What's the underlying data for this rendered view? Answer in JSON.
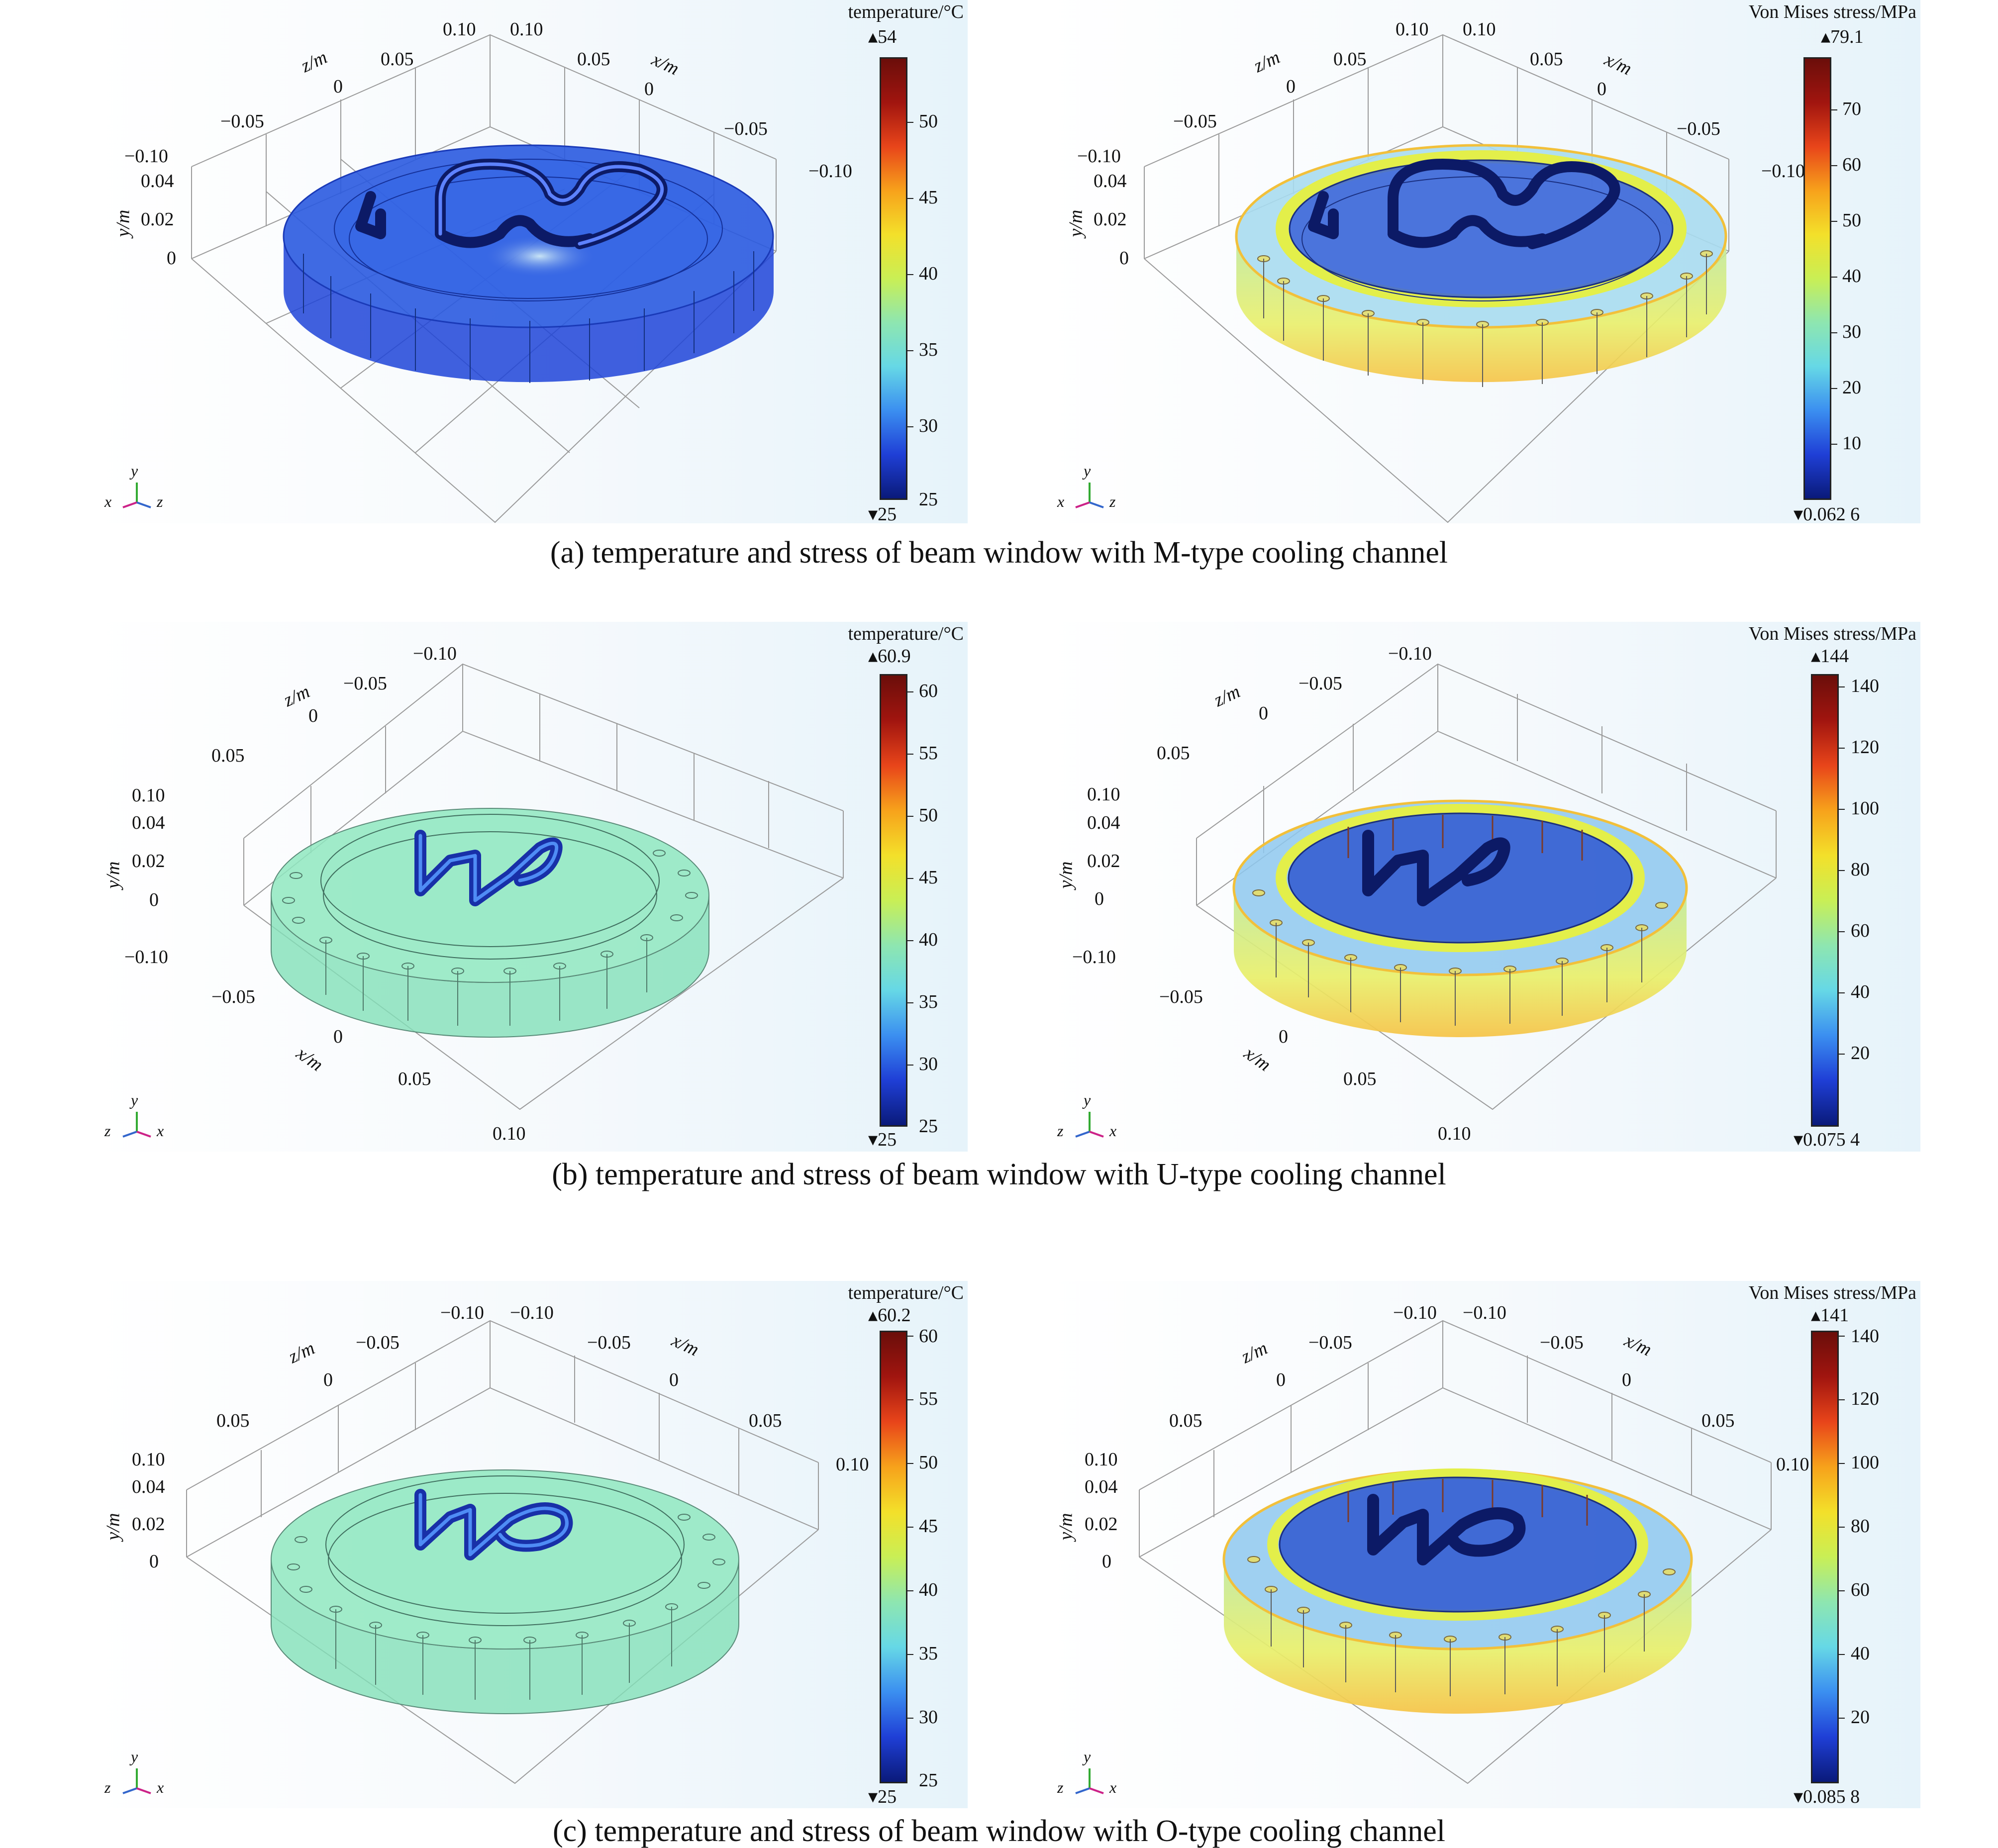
{
  "captions": {
    "a": "(a) temperature and stress of beam window with M-type cooling channel",
    "b": "(b) temperature and stress of beam window with U-type cooling channel",
    "c": "(c) temperature and stress of beam window with O-type cooling channel"
  },
  "rows": [
    {
      "temperature": {
        "colorbar": {
          "title": "temperature/°C",
          "max_label": "▴54",
          "min_label": "▾25",
          "ticks": [
            "50",
            "45",
            "40",
            "35",
            "30",
            "25"
          ],
          "range": [
            25,
            54
          ]
        },
        "axis_names": {
          "z": "z/m",
          "x": "x/m",
          "y": "y/m"
        },
        "axis_ticks": [
          "0.10",
          "0.05",
          "0",
          "−0.05",
          "−0.10",
          "0.10",
          "0.05",
          "0",
          "−0.05",
          "−0.10",
          "0.04",
          "0.02",
          "0"
        ],
        "body_color": "#2a5ae0",
        "triad": {
          "y": "y",
          "left": "x",
          "right": "z"
        }
      },
      "stress": {
        "colorbar": {
          "title": "Von Mises stress/MPa",
          "max_label": "▴79.1",
          "min_label": "▾0.062 6",
          "ticks": [
            "70",
            "60",
            "50",
            "40",
            "30",
            "20",
            "10"
          ],
          "range": [
            0.0626,
            79.1
          ]
        },
        "axis_names": {
          "z": "z/m",
          "x": "x/m",
          "y": "y/m"
        },
        "axis_ticks": [
          "0.10",
          "0.05",
          "0",
          "−0.05",
          "−0.10",
          "0.10",
          "0.05",
          "0",
          "−0.05",
          "−0.10",
          "0.04",
          "0.02",
          "0"
        ],
        "triad": {
          "y": "y",
          "left": "x",
          "right": "z"
        }
      }
    },
    {
      "temperature": {
        "colorbar": {
          "title": "temperature/°C",
          "max_label": "▴60.9",
          "min_label": "▾25",
          "ticks": [
            "60",
            "55",
            "50",
            "45",
            "40",
            "35",
            "30",
            "25"
          ],
          "range": [
            25,
            60.9
          ]
        },
        "axis_names": {
          "z": "z/m",
          "x": "x/m",
          "y": "y/m"
        },
        "axis_ticks": [
          "−0.10",
          "−0.05",
          "0",
          "0.05",
          "0.10",
          "0.04",
          "0.02",
          "0",
          "−0.10",
          "−0.05",
          "0",
          "0.05",
          "0.10"
        ],
        "body_color": "#8fe8c0",
        "triad": {
          "y": "y",
          "left": "z",
          "right": "x"
        }
      },
      "stress": {
        "colorbar": {
          "title": "Von Mises stress/MPa",
          "max_label": "▴144",
          "min_label": "▾0.075 4",
          "ticks": [
            "140",
            "120",
            "100",
            "80",
            "60",
            "40",
            "20"
          ],
          "range": [
            0.0754,
            144
          ]
        },
        "axis_names": {
          "z": "z/m",
          "x": "x/m",
          "y": "y/m"
        },
        "axis_ticks": [
          "−0.10",
          "−0.05",
          "0",
          "0.05",
          "0.10",
          "0.04",
          "0.02",
          "0",
          "−0.10",
          "−0.05",
          "0",
          "0.05",
          "0.10"
        ],
        "triad": {
          "y": "y",
          "left": "z",
          "right": "x"
        }
      }
    },
    {
      "temperature": {
        "colorbar": {
          "title": "temperature/°C",
          "max_label": "▴60.2",
          "min_label": "▾25",
          "ticks": [
            "60",
            "55",
            "50",
            "45",
            "40",
            "35",
            "30",
            "25"
          ],
          "range": [
            25,
            60.2
          ]
        },
        "axis_names": {
          "z": "z/m",
          "x": "x/m",
          "y": "y/m"
        },
        "axis_ticks": [
          "−0.10",
          "−0.05",
          "0",
          "0.05",
          "0.10",
          "−0.10",
          "−0.05",
          "0",
          "0.05",
          "0.10",
          "0.04",
          "0.02",
          "0"
        ],
        "body_color": "#8fe8c0",
        "triad": {
          "y": "y",
          "left": "z",
          "right": "x"
        }
      },
      "stress": {
        "colorbar": {
          "title": "Von Mises stress/MPa",
          "max_label": "▴141",
          "min_label": "▾0.085 8",
          "ticks": [
            "140",
            "120",
            "100",
            "80",
            "60",
            "40",
            "20"
          ],
          "range": [
            0.0858,
            141
          ]
        },
        "axis_names": {
          "z": "z/m",
          "x": "x/m",
          "y": "y/m"
        },
        "axis_ticks": [
          "−0.10",
          "−0.05",
          "0",
          "0.05",
          "0.10",
          "−0.10",
          "−0.05",
          "0",
          "0.05",
          "0.10",
          "0.04",
          "0.02",
          "0"
        ],
        "triad": {
          "y": "y",
          "left": "z",
          "right": "x"
        }
      }
    }
  ],
  "colormap": [
    "#0a1a7a",
    "#1f3fd6",
    "#3b8ff0",
    "#66d8e6",
    "#8ee6b0",
    "#c9ef55",
    "#f3e02a",
    "#f7a21b",
    "#e8451a",
    "#a1150f",
    "#6b0e0a"
  ]
}
